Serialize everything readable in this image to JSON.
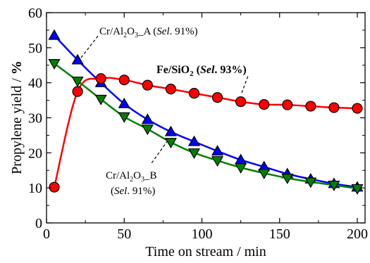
{
  "chart_data": {
    "type": "line",
    "xlabel": "Time on stream / min",
    "ylabel_prefix": "Propylene yield / ",
    "ylabel_unit": "%",
    "xlim": [
      0,
      205
    ],
    "ylim": [
      0,
      60
    ],
    "xticks": [
      0,
      50,
      100,
      150,
      200
    ],
    "yticks": [
      0,
      10,
      20,
      30,
      40,
      50,
      60
    ],
    "grid": false,
    "series": [
      {
        "key": "crA",
        "color": "#0000ff",
        "marker": "triangle-up",
        "x": [
          5,
          20,
          35,
          50,
          65,
          80,
          95,
          110,
          125,
          140,
          155,
          170,
          185,
          200
        ],
        "y": [
          53.5,
          46.5,
          40.0,
          34.0,
          29.5,
          26.0,
          23.2,
          20.5,
          18.0,
          16.0,
          14.0,
          12.5,
          11.2,
          10.2
        ]
      },
      {
        "key": "feSiO2",
        "color": "#ff0000",
        "marker": "circle",
        "x": [
          5,
          20,
          35,
          50,
          65,
          80,
          95,
          110,
          125,
          140,
          155,
          170,
          185,
          200
        ],
        "y": [
          10.2,
          37.5,
          41.2,
          40.8,
          39.3,
          38.2,
          37.0,
          35.8,
          34.6,
          33.8,
          33.7,
          33.3,
          32.9,
          32.7
        ]
      },
      {
        "key": "crB",
        "color": "#008000",
        "marker": "triangle-down",
        "x": [
          5,
          20,
          35,
          50,
          65,
          80,
          95,
          110,
          125,
          140,
          155,
          170,
          185,
          200
        ],
        "y": [
          45.5,
          40.5,
          35.3,
          30.3,
          26.8,
          23.0,
          20.0,
          17.8,
          15.8,
          14.2,
          12.8,
          11.7,
          10.8,
          9.8
        ]
      }
    ],
    "annotations": {
      "crA": {
        "cat": "Cr/Al",
        "sub1": "2",
        "mid": "O",
        "sub2": "3",
        "suffix": "_A (",
        "sel": "Sel",
        "rest": ". 91%)"
      },
      "feSiO2": {
        "cat": "Fe/SiO",
        "sub1": "2",
        "open": " (",
        "sel": "Sel",
        "rest": ". 93%)"
      },
      "crB": {
        "cat": "Cr/Al",
        "sub1": "2",
        "mid": "O",
        "sub2": "3",
        "suffix": "_B",
        "open": "(",
        "sel": "Sel",
        "rest": ". 91%)"
      }
    }
  }
}
